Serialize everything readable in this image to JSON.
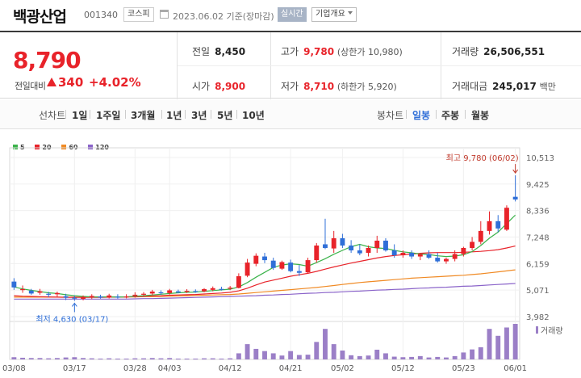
{
  "header": {
    "stock_name": "백광산업",
    "stock_code": "001340",
    "market": "코스피",
    "date_text": "2023.06.02 기준(장마감)",
    "realtime_label": "실시간",
    "company_info_label": "기업개요"
  },
  "summary": {
    "current_price": "8,790",
    "prev_compare_label": "전일대비",
    "change": "340",
    "change_pct": "+4.02%",
    "prev_close_label": "전일",
    "prev_close": "8,450",
    "open_label": "시가",
    "open": "8,900",
    "high_label": "고가",
    "high": "9,780",
    "high_limit": "(상한가 10,980)",
    "low_label": "저가",
    "low": "8,710",
    "low_limit": "(하한가 5,920)",
    "volume_label": "거래량",
    "volume": "26,506,551",
    "amount_label": "거래대금",
    "amount": "245,017",
    "amount_unit": "백만"
  },
  "toolbar": {
    "line_chart_label": "선차트",
    "periods": [
      "1일",
      "1주일",
      "3개월",
      "1년",
      "3년",
      "5년",
      "10년"
    ],
    "candle_label": "봉차트",
    "candle_periods": [
      "일봉",
      "주봉",
      "월봉"
    ],
    "active_candle": "일봉"
  },
  "colors": {
    "up": "#e8232a",
    "down": "#2f6fd8",
    "ma5": "#3bb34a",
    "ma20": "#e8232a",
    "ma60": "#f08a24",
    "ma120": "#8a63c9",
    "volume": "#9b7fc7"
  },
  "chart_data": {
    "type": "candlestick",
    "legend": [
      "5",
      "20",
      "60",
      "120"
    ],
    "x_ticks": [
      {
        "label": "03/08",
        "i": 0
      },
      {
        "label": "03/17",
        "i": 7
      },
      {
        "label": "03/28",
        "i": 14
      },
      {
        "label": "04/03",
        "i": 18
      },
      {
        "label": "04/12",
        "i": 25
      },
      {
        "label": "04/21",
        "i": 32
      },
      {
        "label": "05/02",
        "i": 38
      },
      {
        "label": "05/12",
        "i": 45
      },
      {
        "label": "05/23",
        "i": 52
      },
      {
        "label": "06/01",
        "i": 58
      }
    ],
    "y_ticks": [
      "10,513",
      "9,425",
      "8,336",
      "7,248",
      "6,159",
      "5,071",
      "3,982"
    ],
    "ylim": [
      3982,
      10513
    ],
    "max_annotation": "최고 9,780 (06/02)",
    "min_annotation": "최저 4,630 (03/17)",
    "volume_label": "거래량",
    "ohlc": [
      [
        5420,
        5560,
        5080,
        5180
      ],
      [
        5090,
        5260,
        4960,
        5110
      ],
      [
        5050,
        5120,
        4880,
        4930
      ],
      [
        4960,
        5120,
        4880,
        5020
      ],
      [
        4920,
        5000,
        4780,
        4880
      ],
      [
        4900,
        5010,
        4800,
        4950
      ],
      [
        4820,
        4920,
        4660,
        4760
      ],
      [
        4760,
        4850,
        4630,
        4740
      ],
      [
        4710,
        4850,
        4650,
        4790
      ],
      [
        4780,
        4900,
        4700,
        4830
      ],
      [
        4810,
        4880,
        4720,
        4760
      ],
      [
        4760,
        4920,
        4730,
        4850
      ],
      [
        4800,
        4900,
        4720,
        4760
      ],
      [
        4780,
        4900,
        4730,
        4810
      ],
      [
        4830,
        4980,
        4760,
        4880
      ],
      [
        4890,
        4990,
        4830,
        4920
      ],
      [
        4930,
        5080,
        4870,
        5010
      ],
      [
        4980,
        5060,
        4880,
        4940
      ],
      [
        4950,
        5120,
        4890,
        5060
      ],
      [
        5020,
        5090,
        4940,
        4970
      ],
      [
        5010,
        5110,
        4950,
        5040
      ],
      [
        5030,
        5100,
        4960,
        4990
      ],
      [
        5020,
        5150,
        4980,
        5110
      ],
      [
        5080,
        5220,
        5020,
        5150
      ],
      [
        5120,
        5210,
        5050,
        5100
      ],
      [
        5130,
        5240,
        5070,
        5170
      ],
      [
        5160,
        5760,
        5140,
        5640
      ],
      [
        5660,
        6350,
        5600,
        6200
      ],
      [
        6150,
        6580,
        6050,
        6480
      ],
      [
        6450,
        6600,
        6180,
        6300
      ],
      [
        6280,
        6400,
        5900,
        5980
      ],
      [
        5950,
        6280,
        5900,
        6220
      ],
      [
        6200,
        6320,
        5800,
        5850
      ],
      [
        5850,
        6100,
        5650,
        5780
      ],
      [
        5800,
        6400,
        5750,
        6300
      ],
      [
        6300,
        7000,
        6200,
        6900
      ],
      [
        6950,
        8000,
        6750,
        6800
      ],
      [
        6780,
        7500,
        6600,
        7200
      ],
      [
        7200,
        7380,
        6800,
        6900
      ],
      [
        6900,
        7120,
        6600,
        6700
      ],
      [
        6700,
        6950,
        6500,
        6580
      ],
      [
        6600,
        6900,
        6450,
        6800
      ],
      [
        6800,
        7300,
        6600,
        7100
      ],
      [
        7100,
        7200,
        6650,
        6700
      ],
      [
        6700,
        6950,
        6400,
        6500
      ],
      [
        6500,
        6700,
        6400,
        6600
      ],
      [
        6600,
        6700,
        6350,
        6450
      ],
      [
        6450,
        6600,
        6300,
        6550
      ],
      [
        6550,
        6700,
        6350,
        6400
      ],
      [
        6400,
        6600,
        6200,
        6250
      ],
      [
        6250,
        6400,
        6150,
        6350
      ],
      [
        6350,
        6700,
        6250,
        6550
      ],
      [
        6550,
        6850,
        6450,
        6800
      ],
      [
        6800,
        7250,
        6700,
        7050
      ],
      [
        7050,
        7900,
        6950,
        7500
      ],
      [
        7500,
        8300,
        7350,
        7900
      ],
      [
        7900,
        8150,
        7450,
        7600
      ],
      [
        7550,
        8550,
        7500,
        8450
      ],
      [
        8900,
        9780,
        8710,
        8790
      ]
    ],
    "ma5": [
      5200,
      5120,
      5060,
      5010,
      4960,
      4930,
      4880,
      4840,
      4810,
      4790,
      4790,
      4790,
      4790,
      4790,
      4820,
      4840,
      4870,
      4900,
      4930,
      4960,
      4980,
      4990,
      5020,
      5050,
      5080,
      5110,
      5200,
      5380,
      5600,
      5800,
      6000,
      6100,
      6150,
      6120,
      6050,
      6200,
      6360,
      6540,
      6700,
      6850,
      6950,
      6850,
      6800,
      6780,
      6700,
      6640,
      6600,
      6550,
      6530,
      6480,
      6450,
      6470,
      6520,
      6650,
      6900,
      7200,
      7450,
      7800,
      8150
    ],
    "ma20": [
      4840,
      4820,
      4810,
      4800,
      4790,
      4780,
      4770,
      4770,
      4770,
      4770,
      4770,
      4780,
      4780,
      4790,
      4800,
      4810,
      4830,
      4840,
      4860,
      4870,
      4880,
      4890,
      4910,
      4930,
      4950,
      4980,
      5040,
      5150,
      5280,
      5400,
      5480,
      5560,
      5640,
      5700,
      5760,
      5840,
      5930,
      6020,
      6100,
      6180,
      6250,
      6320,
      6390,
      6450,
      6490,
      6520,
      6550,
      6580,
      6600,
      6610,
      6610,
      6610,
      6620,
      6640,
      6660,
      6690,
      6730,
      6800,
      6880
    ],
    "ma60": [
      4780,
      4780,
      4780,
      4780,
      4780,
      4780,
      4780,
      4780,
      4780,
      4780,
      4780,
      4780,
      4780,
      4790,
      4790,
      4800,
      4800,
      4810,
      4820,
      4830,
      4840,
      4850,
      4860,
      4870,
      4880,
      4890,
      4910,
      4940,
      4970,
      5000,
      5030,
      5060,
      5090,
      5120,
      5150,
      5180,
      5220,
      5260,
      5300,
      5340,
      5380,
      5410,
      5440,
      5470,
      5500,
      5530,
      5560,
      5580,
      5600,
      5620,
      5640,
      5660,
      5680,
      5710,
      5740,
      5780,
      5820,
      5860,
      5900
    ],
    "ma120": [
      4700,
      4700,
      4700,
      4700,
      4700,
      4700,
      4700,
      4700,
      4700,
      4700,
      4700,
      4700,
      4700,
      4700,
      4710,
      4720,
      4720,
      4730,
      4740,
      4750,
      4760,
      4770,
      4780,
      4790,
      4800,
      4810,
      4820,
      4830,
      4840,
      4860,
      4870,
      4890,
      4900,
      4920,
      4940,
      4950,
      4970,
      4980,
      5000,
      5020,
      5030,
      5050,
      5070,
      5080,
      5100,
      5110,
      5130,
      5150,
      5160,
      5180,
      5190,
      5210,
      5230,
      5240,
      5260,
      5280,
      5300,
      5320,
      5340
    ],
    "volume": [
      0.8,
      0.6,
      0.5,
      0.5,
      0.4,
      0.5,
      0.7,
      0.8,
      0.5,
      0.4,
      0.3,
      0.4,
      0.3,
      0.3,
      0.4,
      0.4,
      0.5,
      0.4,
      0.5,
      0.3,
      0.3,
      0.3,
      0.4,
      0.4,
      0.3,
      0.4,
      2.2,
      5.5,
      3.8,
      3.0,
      2.2,
      1.4,
      3.0,
      1.6,
      1.7,
      6.3,
      11.0,
      5.5,
      3.2,
      1.5,
      1.2,
      1.4,
      3.5,
      2.2,
      1.0,
      0.8,
      0.9,
      1.2,
      0.7,
      0.9,
      0.7,
      1.2,
      2.5,
      3.6,
      4.4,
      11.0,
      8.5,
      11.5,
      12.8
    ]
  }
}
